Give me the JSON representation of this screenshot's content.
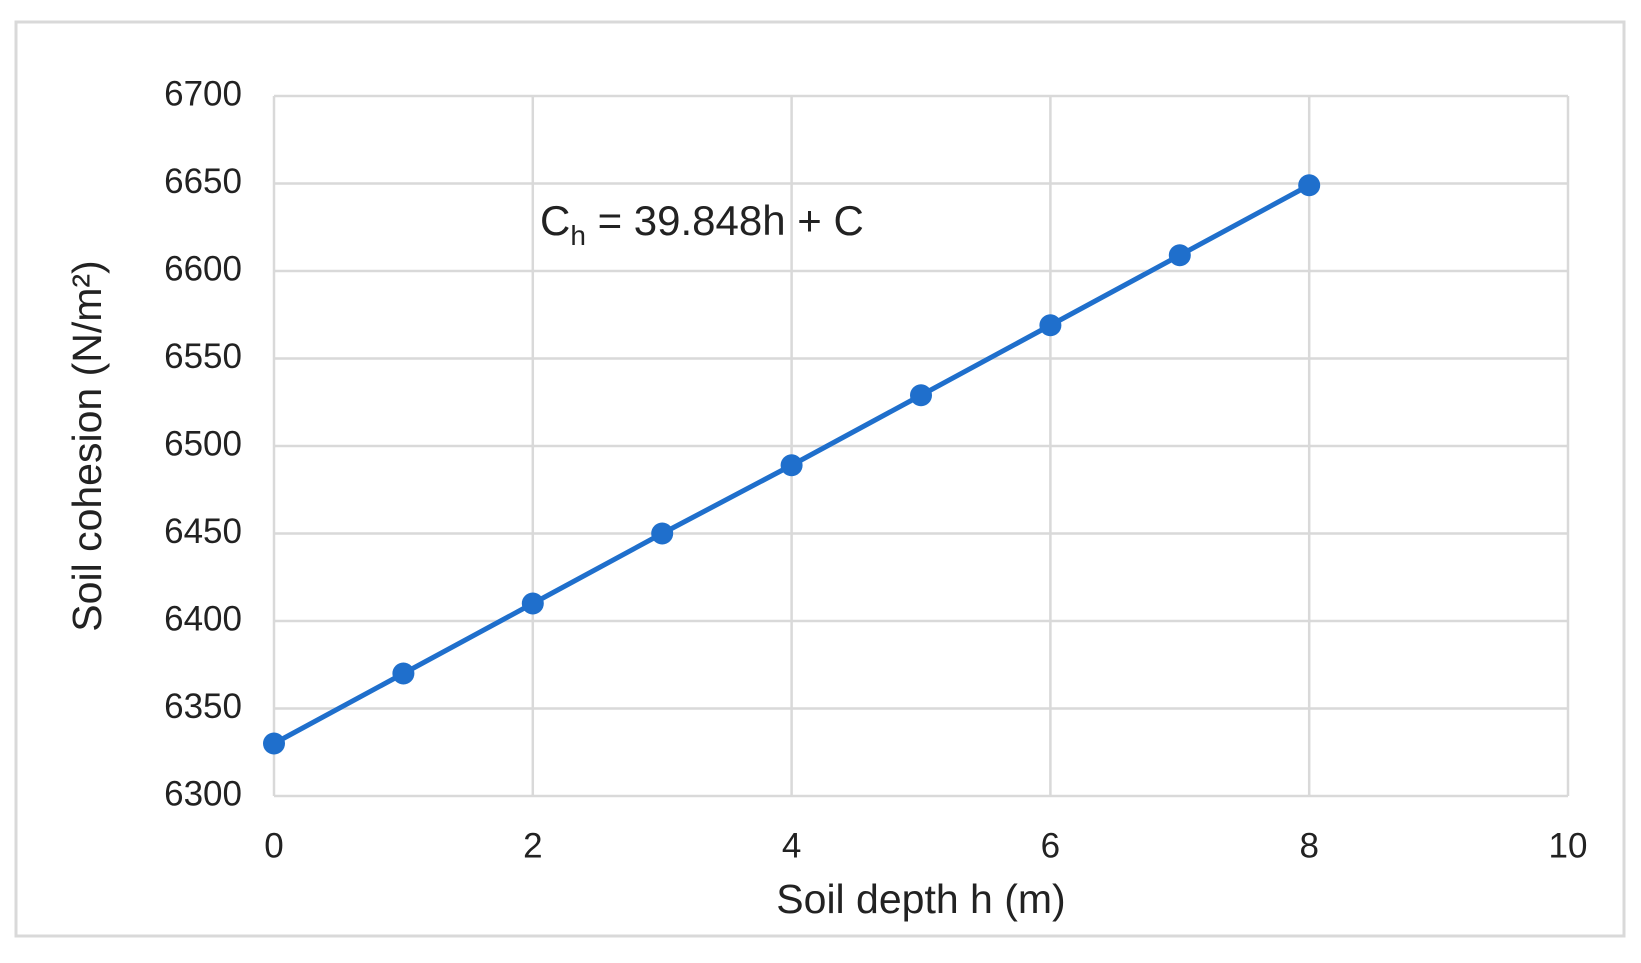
{
  "chart_data": {
    "type": "line",
    "x_label": "Soil depth h (m)",
    "y_label": "Soil cohesion (N/m²)",
    "annotation": [
      "C",
      "h",
      " = 39.848h + C"
    ],
    "x": [
      0,
      1,
      2,
      3,
      4,
      5,
      6,
      7,
      8
    ],
    "series": [
      {
        "color": "#1f6fcc",
        "values": [
          6330,
          6370,
          6410,
          6450,
          6489,
          6529,
          6569,
          6609,
          6649
        ]
      }
    ],
    "xlim": [
      0,
      10
    ],
    "xticks": [
      0,
      2,
      4,
      6,
      8,
      10
    ],
    "ylim": [
      6300,
      6700
    ],
    "yticks": [
      6300,
      6350,
      6400,
      6450,
      6500,
      6550,
      6600,
      6650,
      6700
    ],
    "grid": true
  }
}
